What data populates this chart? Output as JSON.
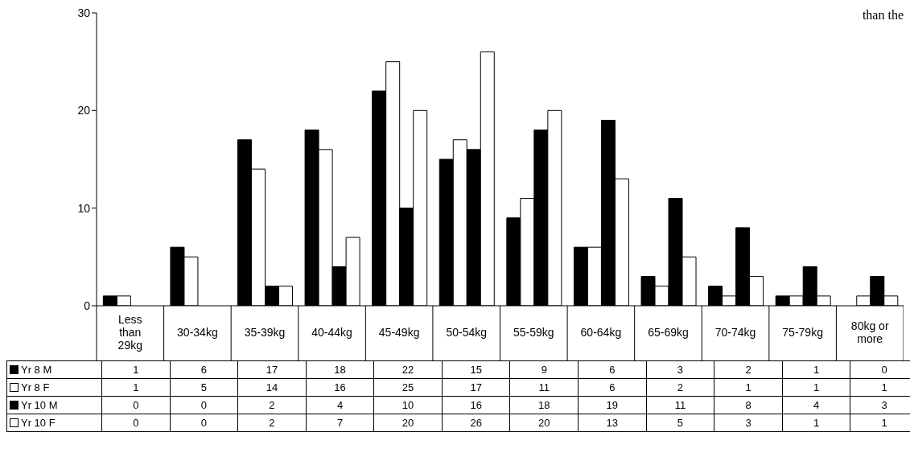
{
  "chart_data": {
    "type": "bar",
    "categories": [
      "Less than 29kg",
      "30-34kg",
      "35-39kg",
      "40-44kg",
      "45-49kg",
      "50-54kg",
      "55-59kg",
      "60-64kg",
      "65-69kg",
      "70-74kg",
      "75-79kg",
      "80kg or more"
    ],
    "series": [
      {
        "name": "Yr 8 M",
        "color": "#000000",
        "values": [
          1,
          6,
          17,
          18,
          22,
          15,
          9,
          6,
          3,
          2,
          1,
          0
        ]
      },
      {
        "name": "Yr 8 F",
        "color": "#ffffff",
        "values": [
          1,
          5,
          14,
          16,
          25,
          17,
          11,
          6,
          2,
          1,
          1,
          1
        ]
      },
      {
        "name": "Yr 10 M",
        "color": "#000000",
        "values": [
          0,
          0,
          2,
          4,
          10,
          16,
          18,
          19,
          11,
          8,
          4,
          3
        ]
      },
      {
        "name": "Yr 10 F",
        "color": "#ffffff",
        "values": [
          0,
          0,
          2,
          7,
          20,
          26,
          20,
          13,
          5,
          3,
          1,
          1
        ]
      }
    ],
    "ylim": [
      0,
      30
    ],
    "yticks": [
      0,
      10,
      20,
      30
    ],
    "legend": "bottom left",
    "data_labels": true,
    "annotations": [
      "than the"
    ]
  }
}
